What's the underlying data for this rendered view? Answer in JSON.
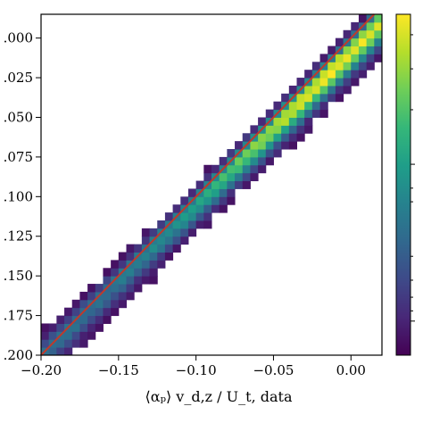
{
  "chart_data": {
    "type": "heatmap",
    "title": "",
    "xlabel": "⟨αₚ⟩ v_d,z / U_t, data",
    "ylabel": "",
    "xlim": [
      -0.2,
      0.02
    ],
    "ylim": [
      -0.2,
      0.015
    ],
    "x_ticks": [
      -0.2,
      -0.15,
      -0.1,
      -0.05,
      0.0
    ],
    "x_tick_labels": [
      "−0.20",
      "−0.15",
      "−0.10",
      "−0.05",
      "0.00"
    ],
    "y_ticks": [
      0.0,
      -0.025,
      -0.05,
      -0.075,
      -0.1,
      -0.125,
      -0.15,
      -0.175,
      -0.2
    ],
    "y_tick_labels": [
      ".000",
      ".025",
      ".050",
      ".075",
      ".100",
      ".125",
      ".150",
      ".175",
      ".200"
    ],
    "bin_size": 0.005,
    "density_ridge": {
      "description_free": true,
      "slope": 0.96,
      "intercept": -0.0085
    },
    "reference_line": {
      "type": "y=x",
      "color": "#c0392b"
    },
    "colormap": "viridis",
    "colorbar": {
      "visible": true,
      "tick_labels": []
    },
    "grid": false,
    "legend": "none"
  }
}
